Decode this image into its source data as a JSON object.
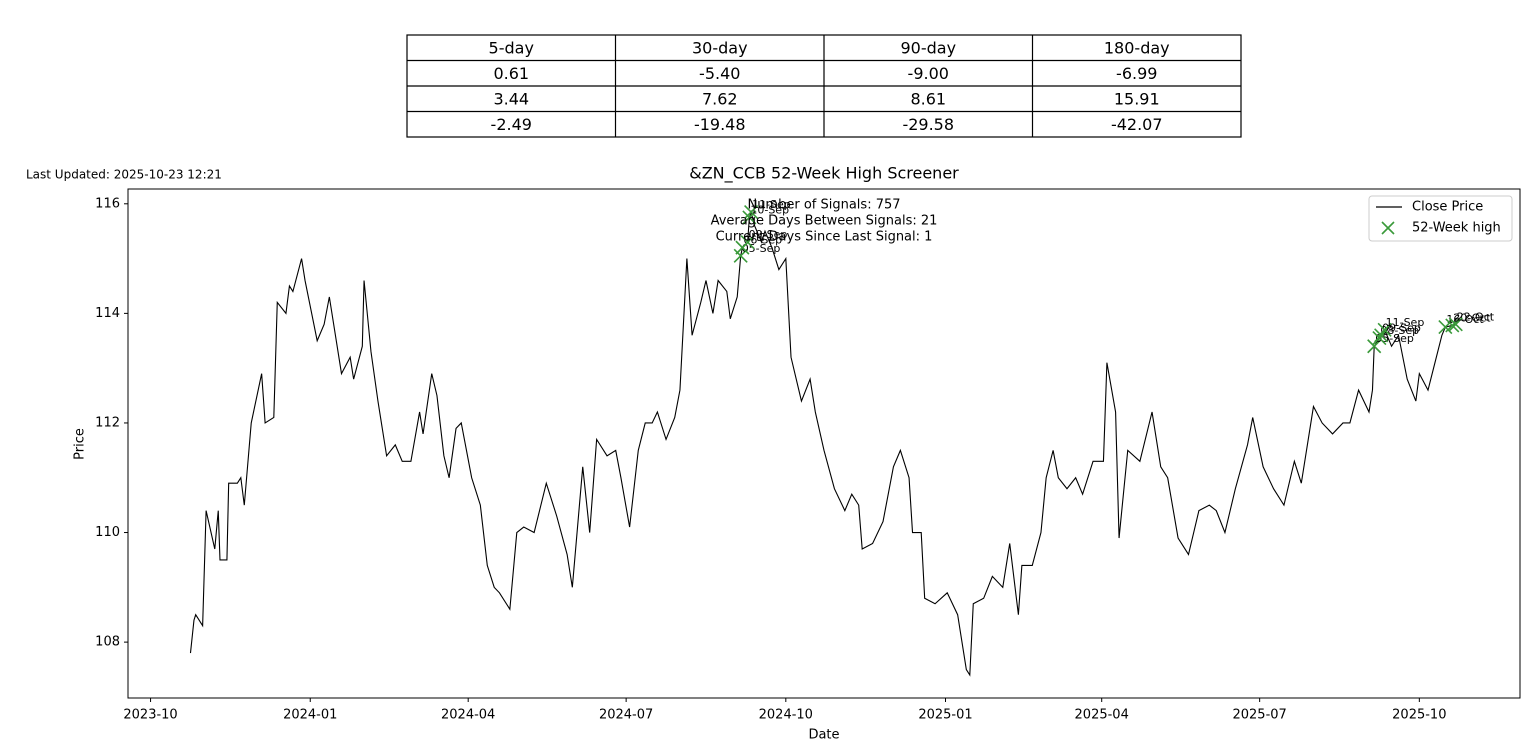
{
  "table": {
    "columns": [
      "5-day",
      "30-day",
      "90-day",
      "180-day"
    ],
    "rows": [
      [
        "0.61",
        "-5.40",
        "-9.00",
        "-6.99"
      ],
      [
        "3.44",
        "7.62",
        "8.61",
        "15.91"
      ],
      [
        "-2.49",
        "-19.48",
        "-29.58",
        "-42.07"
      ]
    ]
  },
  "last_updated": "Last Updated: 2025-10-23 12:21",
  "chart_data": {
    "type": "line",
    "title": "&ZN_CCB 52-Week High Screener",
    "xlabel": "Date",
    "ylabel": "Price",
    "annotations": [
      "Number of Signals: 757",
      "Average Days Between Signals: 21",
      "Current Days Since Last Signal: 1"
    ],
    "xlim": [
      "2023-09-18",
      "2025-11-28"
    ],
    "xticks": [
      "2023-10",
      "2024-01",
      "2024-04",
      "2024-07",
      "2024-10",
      "2025-01",
      "2025-04",
      "2025-07",
      "2025-10"
    ],
    "ylim": [
      106.98,
      116.27
    ],
    "yticks": [
      108,
      110,
      112,
      114,
      116
    ],
    "legend": "upper right",
    "series": [
      {
        "name": "Close Price",
        "color": "#000000",
        "x": [
          "2023-10-24",
          "2023-10-26",
          "2023-10-27",
          "2023-10-31",
          "2023-11-02",
          "2023-11-07",
          "2023-11-09",
          "2023-11-10",
          "2023-11-14",
          "2023-11-15",
          "2023-11-20",
          "2023-11-22",
          "2023-11-24",
          "2023-11-28",
          "2023-11-30",
          "2023-12-04",
          "2023-12-06",
          "2023-12-11",
          "2023-12-13",
          "2023-12-18",
          "2023-12-20",
          "2023-12-22",
          "2023-12-27",
          "2023-12-29",
          "2024-01-05",
          "2024-01-09",
          "2024-01-12",
          "2024-01-19",
          "2024-01-24",
          "2024-01-26",
          "2024-01-31",
          "2024-02-01",
          "2024-02-05",
          "2024-02-09",
          "2024-02-14",
          "2024-02-19",
          "2024-02-23",
          "2024-02-28",
          "2024-03-04",
          "2024-03-06",
          "2024-03-11",
          "2024-03-14",
          "2024-03-18",
          "2024-03-21",
          "2024-03-25",
          "2024-03-28",
          "2024-04-03",
          "2024-04-08",
          "2024-04-12",
          "2024-04-16",
          "2024-04-19",
          "2024-04-25",
          "2024-04-29",
          "2024-05-03",
          "2024-05-09",
          "2024-05-16",
          "2024-05-22",
          "2024-05-28",
          "2024-05-31",
          "2024-06-06",
          "2024-06-10",
          "2024-06-14",
          "2024-06-20",
          "2024-06-25",
          "2024-06-28",
          "2024-07-03",
          "2024-07-08",
          "2024-07-12",
          "2024-07-16",
          "2024-07-19",
          "2024-07-24",
          "2024-07-29",
          "2024-08-01",
          "2024-08-05",
          "2024-08-08",
          "2024-08-13",
          "2024-08-16",
          "2024-08-20",
          "2024-08-23",
          "2024-08-28",
          "2024-08-30",
          "2024-09-03",
          "2024-09-05",
          "2024-09-06",
          "2024-09-09",
          "2024-09-10",
          "2024-09-11",
          "2024-09-13",
          "2024-09-17",
          "2024-09-19",
          "2024-09-23",
          "2024-09-27",
          "2024-10-01",
          "2024-10-04",
          "2024-10-10",
          "2024-10-15",
          "2024-10-18",
          "2024-10-23",
          "2024-10-29",
          "2024-11-04",
          "2024-11-08",
          "2024-11-12",
          "2024-11-14",
          "2024-11-20",
          "2024-11-26",
          "2024-12-02",
          "2024-12-06",
          "2024-12-11",
          "2024-12-13",
          "2024-12-18",
          "2024-12-20",
          "2024-12-26",
          "2025-01-02",
          "2025-01-08",
          "2025-01-13",
          "2025-01-15",
          "2025-01-17",
          "2025-01-23",
          "2025-01-28",
          "2025-02-03",
          "2025-02-07",
          "2025-02-12",
          "2025-02-14",
          "2025-02-20",
          "2025-02-25",
          "2025-02-28",
          "2025-03-04",
          "2025-03-07",
          "2025-03-12",
          "2025-03-17",
          "2025-03-21",
          "2025-03-27",
          "2025-04-02",
          "2025-04-04",
          "2025-04-09",
          "2025-04-11",
          "2025-04-16",
          "2025-04-23",
          "2025-04-30",
          "2025-05-05",
          "2025-05-09",
          "2025-05-15",
          "2025-05-21",
          "2025-05-27",
          "2025-06-02",
          "2025-06-06",
          "2025-06-11",
          "2025-06-17",
          "2025-06-24",
          "2025-06-27",
          "2025-07-03",
          "2025-07-09",
          "2025-07-15",
          "2025-07-21",
          "2025-07-25",
          "2025-08-01",
          "2025-08-06",
          "2025-08-12",
          "2025-08-18",
          "2025-08-22",
          "2025-08-27",
          "2025-09-02",
          "2025-09-04",
          "2025-09-05",
          "2025-09-08",
          "2025-09-09",
          "2025-09-11",
          "2025-09-15",
          "2025-09-19",
          "2025-09-24",
          "2025-09-29",
          "2025-10-01",
          "2025-10-06",
          "2025-10-10",
          "2025-10-14",
          "2025-10-16",
          "2025-10-20",
          "2025-10-22"
        ],
        "values": [
          107.8,
          108.4,
          108.5,
          108.3,
          110.4,
          109.7,
          110.4,
          109.5,
          109.5,
          110.9,
          110.9,
          111.0,
          110.5,
          112.0,
          112.3,
          112.9,
          112.0,
          112.1,
          114.2,
          114.0,
          114.5,
          114.4,
          115.0,
          114.6,
          113.5,
          113.8,
          114.3,
          112.9,
          113.2,
          112.8,
          113.4,
          114.6,
          113.3,
          112.4,
          111.4,
          111.6,
          111.3,
          111.3,
          112.2,
          111.8,
          112.9,
          112.5,
          111.4,
          111.0,
          111.9,
          112.0,
          111.0,
          110.5,
          109.4,
          109.0,
          108.9,
          108.6,
          110.0,
          110.1,
          110.0,
          110.9,
          110.3,
          109.6,
          109.0,
          111.2,
          110.0,
          111.7,
          111.4,
          111.5,
          111.0,
          110.1,
          111.5,
          112.0,
          112.0,
          112.2,
          111.7,
          112.1,
          112.6,
          115.0,
          113.6,
          114.2,
          114.6,
          114.0,
          114.6,
          114.4,
          113.9,
          114.3,
          115.05,
          115.2,
          115.3,
          115.75,
          115.85,
          115.6,
          115.3,
          115.5,
          115.2,
          114.8,
          115.0,
          113.2,
          112.4,
          112.8,
          112.2,
          111.5,
          110.8,
          110.4,
          110.7,
          110.5,
          109.7,
          109.8,
          110.2,
          111.2,
          111.5,
          111.0,
          110.0,
          110.0,
          108.8,
          108.7,
          108.9,
          108.5,
          107.5,
          107.4,
          108.7,
          108.8,
          109.2,
          109.0,
          109.8,
          108.5,
          109.4,
          109.4,
          110.0,
          111.0,
          111.5,
          111.0,
          110.8,
          111.0,
          110.7,
          111.3,
          111.3,
          113.1,
          112.2,
          109.9,
          111.5,
          111.3,
          112.2,
          111.2,
          111.0,
          109.9,
          109.6,
          110.4,
          110.5,
          110.4,
          110.0,
          110.8,
          111.6,
          112.1,
          111.2,
          110.8,
          110.5,
          111.3,
          110.9,
          112.3,
          112.0,
          111.8,
          112.0,
          112.0,
          112.6,
          112.2,
          112.6,
          113.4,
          113.55,
          113.6,
          113.7,
          113.4,
          113.6,
          112.8,
          112.4,
          112.9,
          112.6,
          113.1,
          113.6,
          113.75,
          113.78,
          113.8
        ]
      },
      {
        "name": "52-Week high",
        "type": "scatter",
        "marker": "x",
        "color": "#3a9a3a",
        "x": [
          "2024-09-05",
          "2024-09-06",
          "2024-09-09",
          "2024-09-10",
          "2024-09-11",
          "2025-09-05",
          "2025-09-08",
          "2025-09-09",
          "2025-09-11",
          "2025-10-16",
          "2025-10-20",
          "2025-10-22"
        ],
        "values": [
          115.05,
          115.2,
          115.3,
          115.75,
          115.85,
          113.4,
          113.55,
          113.6,
          113.7,
          113.75,
          113.78,
          113.8
        ],
        "labels": [
          "05-Sep",
          "06-Sep",
          "09-Sep",
          "10-Sep",
          "11-Sep",
          "05-Sep",
          "08-Sep",
          "09-Sep",
          "11-Sep",
          "16-Oct",
          "20-Oct",
          "22-Oct"
        ]
      }
    ]
  }
}
